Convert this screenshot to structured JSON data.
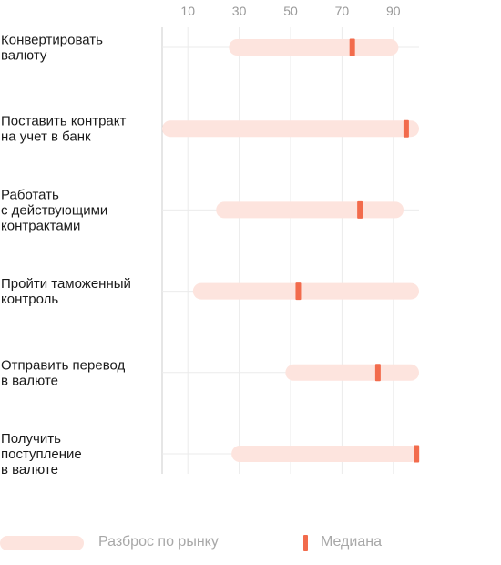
{
  "colors": {
    "range": "#fde4de",
    "median": "#f26b4c",
    "grid": "#ebebeb",
    "axis": "#cccccc",
    "tick_text": "#999999",
    "label_text": "#1a1a1a"
  },
  "chart_data": {
    "type": "range-bar",
    "title": "",
    "xlim": [
      0,
      100
    ],
    "ticks": [
      10,
      30,
      50,
      70,
      90
    ],
    "grid": true,
    "categories": [
      {
        "label": "Конвертировать валюту",
        "lines": [
          "Конвертировать",
          "валюту"
        ],
        "min": 26,
        "max": 92,
        "median": 74
      },
      {
        "label": "Поставить контракт на учет в банк",
        "lines": [
          "Поставить контракт",
          "на учет в банк"
        ],
        "min": 0,
        "max": 100,
        "median": 95
      },
      {
        "label": "Работать с действующими контрактами",
        "lines": [
          "Работать",
          "с действующими",
          "контрактами"
        ],
        "min": 21,
        "max": 94,
        "median": 77
      },
      {
        "label": "Пройти таможенный контроль",
        "lines": [
          "Пройти таможенный",
          "контроль"
        ],
        "min": 12,
        "max": 100,
        "median": 53
      },
      {
        "label": "Отправить перевод в валюте",
        "lines": [
          "Отправить перевод",
          "в валюте"
        ],
        "min": 48,
        "max": 100,
        "median": 84
      },
      {
        "label": "Получить поступление в валюте",
        "lines": [
          "Получить",
          "поступление",
          "в валюте"
        ],
        "min": 27,
        "max": 100,
        "median": 99
      }
    ],
    "legend": {
      "placement": "bottom",
      "range_label": "Разброс по рынку",
      "median_label": "Медиана"
    }
  }
}
